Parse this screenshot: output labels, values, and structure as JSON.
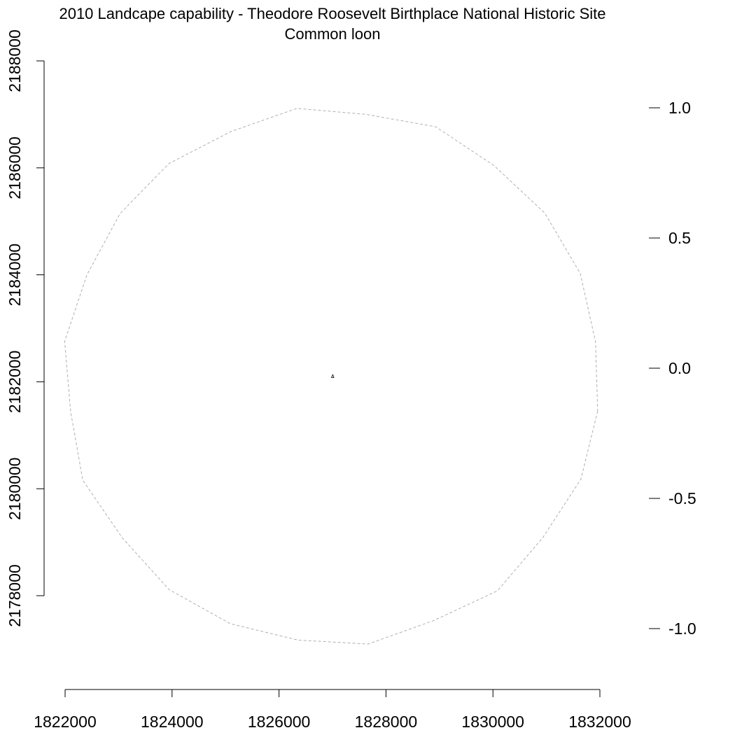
{
  "title": "2010 Landcape capability - Theodore Roosevelt Birthplace National Historic Site",
  "subtitle": "Common loon",
  "chart_data": {
    "type": "map",
    "title": "2010 Landcape capability - Theodore Roosevelt Birthplace National Historic Site",
    "subtitle": "Common loon",
    "x_axis": {
      "range": [
        1822000,
        1832000
      ],
      "ticks": [
        1822000,
        1824000,
        1826000,
        1828000,
        1830000,
        1832000
      ],
      "tick_labels": [
        "1822000",
        "1824000",
        "1826000",
        "1828000",
        "1830000",
        "1832000"
      ]
    },
    "y_axis": {
      "range": [
        2178000,
        2188000
      ],
      "ticks": [
        2178000,
        2180000,
        2182000,
        2184000,
        2186000,
        2188000
      ],
      "tick_labels": [
        "2178000",
        "2180000",
        "2182000",
        "2184000",
        "2186000",
        "2188000"
      ]
    },
    "legend_scale": {
      "range": [
        -1.0,
        1.0
      ],
      "ticks": [
        1.0,
        0.5,
        0.0,
        -0.5,
        -1.0
      ],
      "tick_labels": [
        "1.0",
        "0.5",
        "0.0",
        "-0.5",
        "-1.0"
      ]
    },
    "features": [
      {
        "type": "buffer-circle",
        "center": [
          1827000,
          2182100
        ],
        "radius": 5000,
        "stroke": "#b0b0b0",
        "dashed": true
      },
      {
        "type": "site-polygon",
        "center": [
          1827000,
          2182100
        ],
        "stroke": "#000000"
      }
    ],
    "grid": false
  }
}
